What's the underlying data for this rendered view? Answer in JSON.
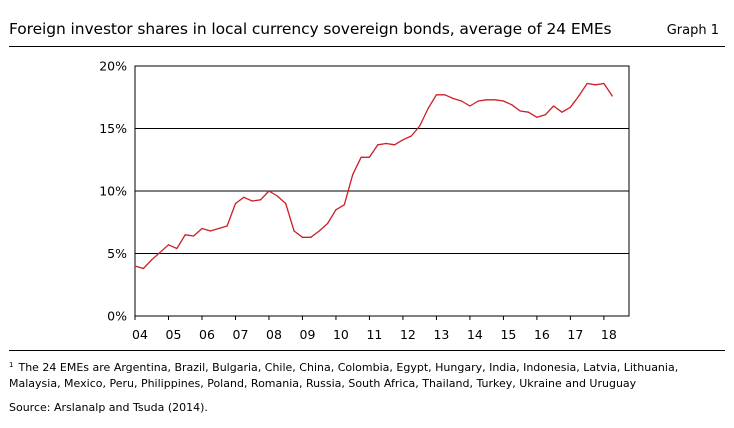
{
  "header": {
    "title": "Foreign investor shares in local currency sovereign bonds, average of 24 EMEs",
    "graph_label": "Graph 1"
  },
  "chart_data": {
    "type": "line",
    "title": "Foreign investor shares in local currency sovereign bonds, average of 24 EMEs",
    "xlabel": "",
    "ylabel": "",
    "xlim": [
      2004,
      2018.75
    ],
    "ylim": [
      0,
      20
    ],
    "x_ticks": [
      2004,
      2005,
      2006,
      2007,
      2008,
      2009,
      2010,
      2011,
      2012,
      2013,
      2014,
      2015,
      2016,
      2017,
      2018
    ],
    "x_tick_labels": [
      "04",
      "05",
      "06",
      "07",
      "08",
      "09",
      "10",
      "11",
      "12",
      "13",
      "14",
      "15",
      "16",
      "17",
      "18"
    ],
    "y_ticks": [
      0,
      5,
      10,
      15,
      20
    ],
    "y_tick_labels": [
      "0%",
      "5%",
      "10%",
      "15%",
      "20%"
    ],
    "grid": true,
    "series": [
      {
        "name": "Foreign investor share",
        "color": "#cc1f27",
        "x": [
          2004.0,
          2004.25,
          2004.5,
          2004.75,
          2005.0,
          2005.25,
          2005.5,
          2005.75,
          2006.0,
          2006.25,
          2006.5,
          2006.75,
          2007.0,
          2007.25,
          2007.5,
          2007.75,
          2008.0,
          2008.25,
          2008.5,
          2008.75,
          2009.0,
          2009.25,
          2009.5,
          2009.75,
          2010.0,
          2010.25,
          2010.5,
          2010.75,
          2011.0,
          2011.25,
          2011.5,
          2011.75,
          2012.0,
          2012.25,
          2012.5,
          2012.75,
          2013.0,
          2013.25,
          2013.5,
          2013.75,
          2014.0,
          2014.25,
          2014.5,
          2014.75,
          2015.0,
          2015.25,
          2015.5,
          2015.75,
          2016.0,
          2016.25,
          2016.5,
          2016.75,
          2017.0,
          2017.25,
          2017.5,
          2017.75,
          2018.0,
          2018.25
        ],
        "values": [
          4.0,
          3.8,
          4.5,
          5.1,
          5.7,
          5.4,
          6.5,
          6.4,
          7.0,
          6.8,
          7.0,
          7.2,
          9.0,
          9.5,
          9.2,
          9.3,
          10.0,
          9.6,
          9.0,
          6.8,
          6.3,
          6.3,
          6.8,
          7.4,
          8.5,
          8.9,
          11.3,
          12.7,
          12.7,
          13.7,
          13.8,
          13.7,
          14.1,
          14.4,
          15.2,
          16.6,
          17.7,
          17.7,
          17.4,
          17.2,
          16.8,
          17.2,
          17.3,
          17.3,
          17.2,
          16.9,
          16.4,
          16.3,
          15.9,
          16.1,
          16.8,
          16.3,
          16.7,
          17.6,
          18.6,
          18.5,
          18.6,
          17.6
        ]
      }
    ]
  },
  "footnote": {
    "marker": "1",
    "text": "The 24 EMEs are Argentina, Brazil, Bulgaria, Chile, China, Colombia, Egypt, Hungary, India, Indonesia, Latvia, Lithuania, Malaysia, Mexico, Peru, Philippines, Poland, Romania, Russia, South Africa, Thailand, Turkey, Ukraine and Uruguay"
  },
  "source": "Source: Arslanalp and  Tsuda (2014)."
}
